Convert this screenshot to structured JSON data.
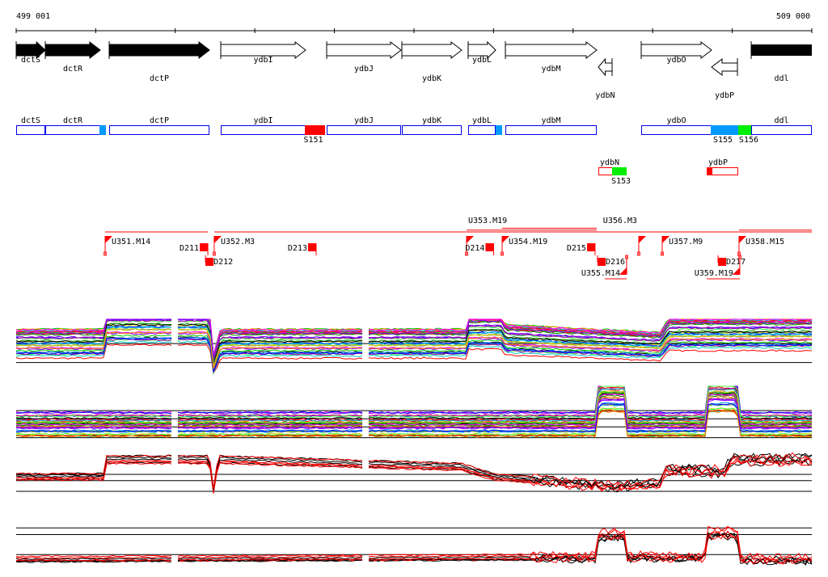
{
  "axis": {
    "start_label": "499 001",
    "end_label": "509 000",
    "start": 499001,
    "end": 509000,
    "tick_step": 1000
  },
  "genes": [
    {
      "name": "dctS",
      "start": 499001,
      "end": 499367,
      "strand": "+",
      "filled": true,
      "label_row": 0
    },
    {
      "name": "dctR",
      "start": 499367,
      "end": 500058,
      "strand": "+",
      "filled": true,
      "label_row": 1
    },
    {
      "name": "dctP",
      "start": 500170,
      "end": 501430,
      "strand": "+",
      "filled": true,
      "label_row": 2
    },
    {
      "name": "ydbI",
      "start": 501572,
      "end": 502639,
      "strand": "+",
      "filled": false,
      "label_row": 0
    },
    {
      "name": "ydbJ",
      "start": 502903,
      "end": 503838,
      "strand": "+",
      "filled": false,
      "label_row": 1
    },
    {
      "name": "ydbK",
      "start": 503848,
      "end": 504600,
      "strand": "+",
      "filled": false,
      "label_row": 2
    },
    {
      "name": "ydbL",
      "start": 504681,
      "end": 505027,
      "strand": "+",
      "filled": false,
      "label_row": 0
    },
    {
      "name": "ydbM",
      "start": 505149,
      "end": 506297,
      "strand": "+",
      "filled": false,
      "label_row": 1
    },
    {
      "name": "ydbN",
      "start": 506317,
      "end": 506490,
      "strand": "-",
      "filled": false,
      "label_row": 3
    },
    {
      "name": "ydbO",
      "start": 506856,
      "end": 507740,
      "strand": "+",
      "filled": false,
      "label_row": 0
    },
    {
      "name": "ydbP",
      "start": 507740,
      "end": 508065,
      "strand": "-",
      "filled": false,
      "label_row": 3
    },
    {
      "name": "ddl",
      "start": 508238,
      "end": 509000,
      "strand": "+",
      "filled": true,
      "label_row": 2,
      "truncated": true
    }
  ],
  "cds_boxes": [
    {
      "name": "dctS",
      "start": 499001,
      "end": 499367
    },
    {
      "name": "dctR",
      "start": 499367,
      "end": 500058
    },
    {
      "name": "dctP",
      "start": 500170,
      "end": 501430
    },
    {
      "name": "ydbI",
      "start": 501572,
      "end": 502639
    },
    {
      "name": "ydbJ",
      "start": 502903,
      "end": 503838
    },
    {
      "name": "ydbK",
      "start": 503848,
      "end": 504600
    },
    {
      "name": "ydbL",
      "start": 504681,
      "end": 505027
    },
    {
      "name": "ydbM",
      "start": 505149,
      "end": 506297
    },
    {
      "name": "ydbO",
      "start": 506856,
      "end": 507740
    },
    {
      "name": "ddl",
      "start": 508238,
      "end": 509000
    }
  ],
  "cds_segments": [
    {
      "label": "",
      "start": 500048,
      "end": 500130,
      "color": "#0099ff"
    },
    {
      "label": "S151",
      "start": 502629,
      "end": 502883,
      "color": "#ff0000"
    },
    {
      "label": "",
      "start": 505027,
      "end": 505108,
      "color": "#0099ff"
    },
    {
      "label": "S155",
      "start": 507730,
      "end": 508075,
      "color": "#0099ff"
    },
    {
      "label": "S156",
      "start": 508075,
      "end": 508238,
      "color": "#00ee00"
    }
  ],
  "reverse_boxes": [
    {
      "name": "ydbN",
      "start": 506317,
      "end": 506673,
      "segment": {
        "label": "S153",
        "start": 506490,
        "end": 506673,
        "color": "#00ee00"
      }
    },
    {
      "name": "ydbP",
      "start": 507679,
      "end": 508075,
      "segment": {
        "label": "",
        "start": 507679,
        "end": 507750,
        "color": "#ff0000"
      }
    }
  ],
  "features": [
    {
      "label": "U351.M14",
      "pos": 500119,
      "type": "U",
      "side": "up"
    },
    {
      "label": "D211",
      "pos": 501410,
      "type": "D",
      "side": "up"
    },
    {
      "label": "D212",
      "pos": 501471,
      "type": "D",
      "side": "down"
    },
    {
      "label": "U352.M3",
      "pos": 501490,
      "type": "U",
      "side": "up"
    },
    {
      "label": "D213",
      "pos": 502771,
      "type": "D",
      "side": "up"
    },
    {
      "label": "U353.M19",
      "pos": 504661,
      "type": "U",
      "side": "up"
    },
    {
      "label": "D214",
      "pos": 505001,
      "type": "D",
      "side": "up"
    },
    {
      "label": "U354.M19",
      "pos": 505108,
      "type": "U",
      "side": "up"
    },
    {
      "label": "D215",
      "pos": 506276,
      "type": "D",
      "side": "up"
    },
    {
      "label": "D216",
      "pos": 506398,
      "type": "D",
      "side": "down"
    },
    {
      "label": "U355.M14",
      "pos": 506673,
      "type": "U",
      "side": "down"
    },
    {
      "label": "U356.M3",
      "pos": 506825,
      "type": "U",
      "side": "up"
    },
    {
      "label": "U357.M9",
      "pos": 507120,
      "type": "U",
      "side": "up"
    },
    {
      "label": "D217",
      "pos": 507913,
      "type": "D",
      "side": "down"
    },
    {
      "label": "U358.M15",
      "pos": 508085,
      "type": "U",
      "side": "up"
    },
    {
      "label": "U359.M19",
      "pos": 508095,
      "type": "U",
      "side": "down"
    }
  ],
  "feature_spans": [
    {
      "start": 500119,
      "end": 501410,
      "row": 0,
      "side": "up"
    },
    {
      "start": 501490,
      "end": 509000,
      "row": 0,
      "side": "up"
    },
    {
      "start": 504661,
      "end": 506297,
      "row": 1,
      "side": "up"
    },
    {
      "start": 505108,
      "end": 506297,
      "row": 2,
      "side": "up"
    },
    {
      "start": 506825,
      "end": 506988,
      "row": 0,
      "side": "up"
    },
    {
      "start": 508085,
      "end": 509000,
      "row": 1,
      "side": "up"
    },
    {
      "start": 506398,
      "end": 506673,
      "row": 0,
      "side": "down"
    },
    {
      "start": 507679,
      "end": 508095,
      "row": 0,
      "side": "down"
    }
  ],
  "expression_panels": [
    {
      "name": "panel-1",
      "kind": "color",
      "lines": 40,
      "profile": [
        [
          499001,
          0.55
        ],
        [
          500119,
          0.55
        ],
        [
          500130,
          0.85
        ],
        [
          501430,
          0.85
        ],
        [
          501480,
          0.15
        ],
        [
          501570,
          0.55
        ],
        [
          504661,
          0.55
        ],
        [
          504680,
          0.75
        ],
        [
          505100,
          0.75
        ],
        [
          505150,
          0.62
        ],
        [
          506300,
          0.55
        ],
        [
          507100,
          0.5
        ],
        [
          507200,
          0.72
        ],
        [
          509000,
          0.72
        ]
      ],
      "refs": [
        0.55,
        0.2
      ]
    },
    {
      "name": "panel-2",
      "kind": "color",
      "lines": 40,
      "profile": [
        [
          499001,
          0.3
        ],
        [
          506300,
          0.3
        ],
        [
          506320,
          0.85
        ],
        [
          506650,
          0.85
        ],
        [
          506680,
          0.3
        ],
        [
          507680,
          0.3
        ],
        [
          507700,
          0.85
        ],
        [
          508060,
          0.85
        ],
        [
          508090,
          0.3
        ],
        [
          509000,
          0.3
        ]
      ],
      "refs": [
        0.55,
        0.4,
        0.25,
        0.05
      ]
    },
    {
      "name": "panel-3",
      "kind": "bw",
      "lines": 8,
      "profile": [
        [
          499001,
          0.5
        ],
        [
          500119,
          0.5
        ],
        [
          500130,
          0.85
        ],
        [
          501430,
          0.85
        ],
        [
          501480,
          0.2
        ],
        [
          501540,
          0.85
        ],
        [
          504600,
          0.7
        ],
        [
          505000,
          0.5
        ],
        [
          505700,
          0.4
        ],
        [
          506500,
          0.3
        ],
        [
          507100,
          0.35
        ],
        [
          507150,
          0.65
        ],
        [
          507900,
          0.6
        ],
        [
          508000,
          0.85
        ],
        [
          509000,
          0.85
        ]
      ],
      "refs": [
        0.55,
        0.42,
        0.2
      ]
    },
    {
      "name": "panel-4",
      "kind": "bw",
      "lines": 8,
      "profile": [
        [
          499001,
          0.15
        ],
        [
          506300,
          0.2
        ],
        [
          506320,
          0.7
        ],
        [
          506660,
          0.7
        ],
        [
          506680,
          0.2
        ],
        [
          507650,
          0.2
        ],
        [
          507700,
          0.75
        ],
        [
          508060,
          0.75
        ],
        [
          508090,
          0.15
        ],
        [
          509000,
          0.15
        ]
      ],
      "refs": [
        0.85,
        0.7,
        0.25
      ]
    }
  ]
}
